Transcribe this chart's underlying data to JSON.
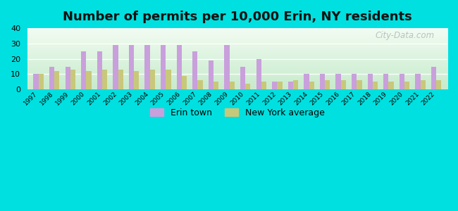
{
  "title": "Number of permits per 10,000 Erin, NY residents",
  "years": [
    1997,
    1998,
    1999,
    2000,
    2001,
    2002,
    2003,
    2004,
    2005,
    2006,
    2007,
    2008,
    2009,
    2010,
    2011,
    2012,
    2013,
    2014,
    2015,
    2016,
    2017,
    2018,
    2019,
    2020,
    2021,
    2022
  ],
  "erin_town": [
    10,
    15,
    15,
    25,
    25,
    29,
    29,
    29,
    29,
    29,
    25,
    19,
    29,
    15,
    20,
    5,
    5,
    10,
    10,
    10,
    10,
    10,
    10,
    10,
    10,
    15
  ],
  "ny_average": [
    10,
    12,
    13,
    12,
    13,
    13,
    12,
    13,
    13,
    9,
    6,
    5,
    5,
    4,
    5,
    5,
    6,
    5,
    6,
    6,
    6,
    5,
    5,
    5,
    6,
    6
  ],
  "erin_color": "#c9a0dc",
  "ny_color": "#c8c87a",
  "background_outer": "#00e0e0",
  "ylim": [
    0,
    40
  ],
  "yticks": [
    0,
    10,
    20,
    30,
    40
  ],
  "bar_width": 0.32,
  "title_fontsize": 13,
  "legend_labels": [
    "Erin town",
    "New York average"
  ],
  "watermark": "City-Data.com"
}
